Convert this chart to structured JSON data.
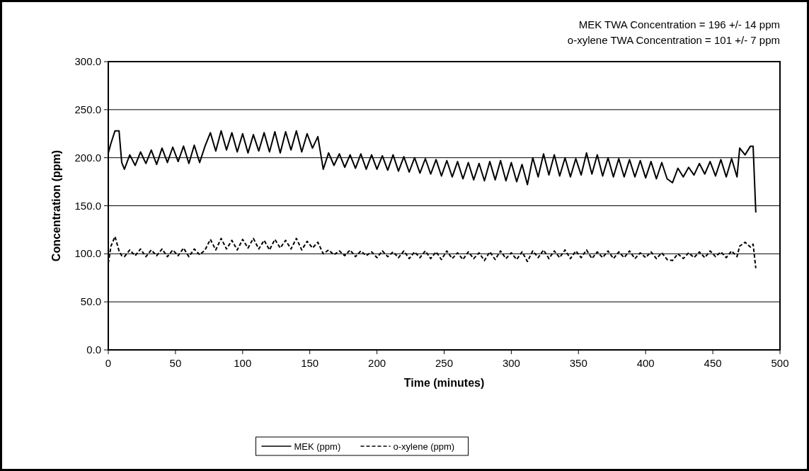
{
  "chart_data": {
    "type": "line",
    "xlabel": "Time (minutes)",
    "ylabel": "Concentration (ppm)",
    "annotations": [
      "MEK TWA Concentration = 196 +/- 14 ppm",
      "o-xylene TWA Concentration = 101 +/- 7 ppm"
    ],
    "x": [
      0,
      2,
      5,
      8,
      10,
      12,
      16,
      20,
      24,
      28,
      32,
      36,
      40,
      44,
      48,
      52,
      56,
      60,
      64,
      68,
      72,
      76,
      80,
      84,
      88,
      92,
      96,
      100,
      104,
      108,
      112,
      116,
      120,
      124,
      128,
      132,
      136,
      140,
      144,
      148,
      152,
      156,
      160,
      164,
      168,
      172,
      176,
      180,
      184,
      188,
      192,
      196,
      200,
      204,
      208,
      212,
      216,
      220,
      224,
      228,
      232,
      236,
      240,
      244,
      248,
      252,
      256,
      260,
      264,
      268,
      272,
      276,
      280,
      284,
      288,
      292,
      296,
      300,
      304,
      308,
      312,
      316,
      320,
      324,
      328,
      332,
      336,
      340,
      344,
      348,
      352,
      356,
      360,
      364,
      368,
      372,
      376,
      380,
      384,
      388,
      392,
      396,
      400,
      404,
      408,
      412,
      416,
      420,
      424,
      428,
      432,
      436,
      440,
      444,
      448,
      452,
      456,
      460,
      464,
      468,
      470,
      474,
      478,
      480,
      482
    ],
    "series": [
      {
        "name": "MEK (ppm)",
        "color": "#000000",
        "line_style": "solid",
        "values": [
          205,
          215,
          228,
          228,
          195,
          188,
          203,
          192,
          206,
          194,
          208,
          193,
          210,
          195,
          211,
          196,
          212,
          194,
          213,
          195,
          212,
          226,
          207,
          228,
          208,
          226,
          206,
          225,
          205,
          224,
          207,
          226,
          206,
          227,
          205,
          227,
          208,
          228,
          206,
          225,
          210,
          222,
          188,
          205,
          192,
          204,
          190,
          203,
          189,
          204,
          188,
          203,
          188,
          202,
          187,
          203,
          186,
          201,
          185,
          200,
          184,
          199,
          183,
          198,
          181,
          197,
          180,
          196,
          178,
          195,
          177,
          194,
          176,
          196,
          177,
          197,
          176,
          195,
          175,
          193,
          172,
          200,
          180,
          204,
          182,
          203,
          181,
          200,
          180,
          199,
          182,
          205,
          183,
          203,
          181,
          200,
          180,
          199,
          180,
          198,
          180,
          197,
          179,
          196,
          178,
          195,
          178,
          174,
          189,
          180,
          190,
          182,
          194,
          183,
          196,
          181,
          198,
          180,
          199,
          180,
          210,
          203,
          212,
          212,
          143
        ]
      },
      {
        "name": "o-xylene (ppm)",
        "color": "#000000",
        "line_style": "dashed",
        "values": [
          90,
          108,
          118,
          103,
          98,
          97,
          104,
          98,
          105,
          97,
          104,
          98,
          105,
          97,
          104,
          98,
          106,
          97,
          105,
          99,
          104,
          115,
          104,
          116,
          105,
          114,
          104,
          115,
          106,
          116,
          105,
          114,
          104,
          115,
          106,
          114,
          105,
          116,
          104,
          113,
          106,
          112,
          100,
          104,
          99,
          103,
          98,
          104,
          97,
          103,
          98,
          102,
          96,
          103,
          97,
          102,
          96,
          103,
          95,
          102,
          96,
          103,
          95,
          102,
          94,
          103,
          95,
          101,
          94,
          102,
          95,
          101,
          93,
          102,
          94,
          103,
          95,
          101,
          94,
          102,
          92,
          103,
          96,
          104,
          95,
          103,
          96,
          104,
          95,
          103,
          96,
          104,
          95,
          102,
          96,
          103,
          95,
          102,
          96,
          103,
          95,
          101,
          96,
          102,
          95,
          101,
          94,
          93,
          100,
          95,
          101,
          96,
          102,
          96,
          103,
          97,
          102,
          96,
          103,
          97,
          108,
          112,
          107,
          110,
          85
        ]
      }
    ],
    "xlim": [
      0,
      500
    ],
    "xticks": [
      0,
      50,
      100,
      150,
      200,
      250,
      300,
      350,
      400,
      450,
      500
    ],
    "ylim": [
      0,
      300
    ],
    "yticks": [
      {
        "value": 0,
        "label": "0.0"
      },
      {
        "value": 50,
        "label": "50.0"
      },
      {
        "value": 100,
        "label": "100.0"
      },
      {
        "value": 150,
        "label": "150.0"
      },
      {
        "value": 200,
        "label": "200.0"
      },
      {
        "value": 250,
        "label": "250.0"
      },
      {
        "value": 300,
        "label": "300.0"
      }
    ],
    "grid": "y",
    "legend": "bottom",
    "marker": "none"
  }
}
